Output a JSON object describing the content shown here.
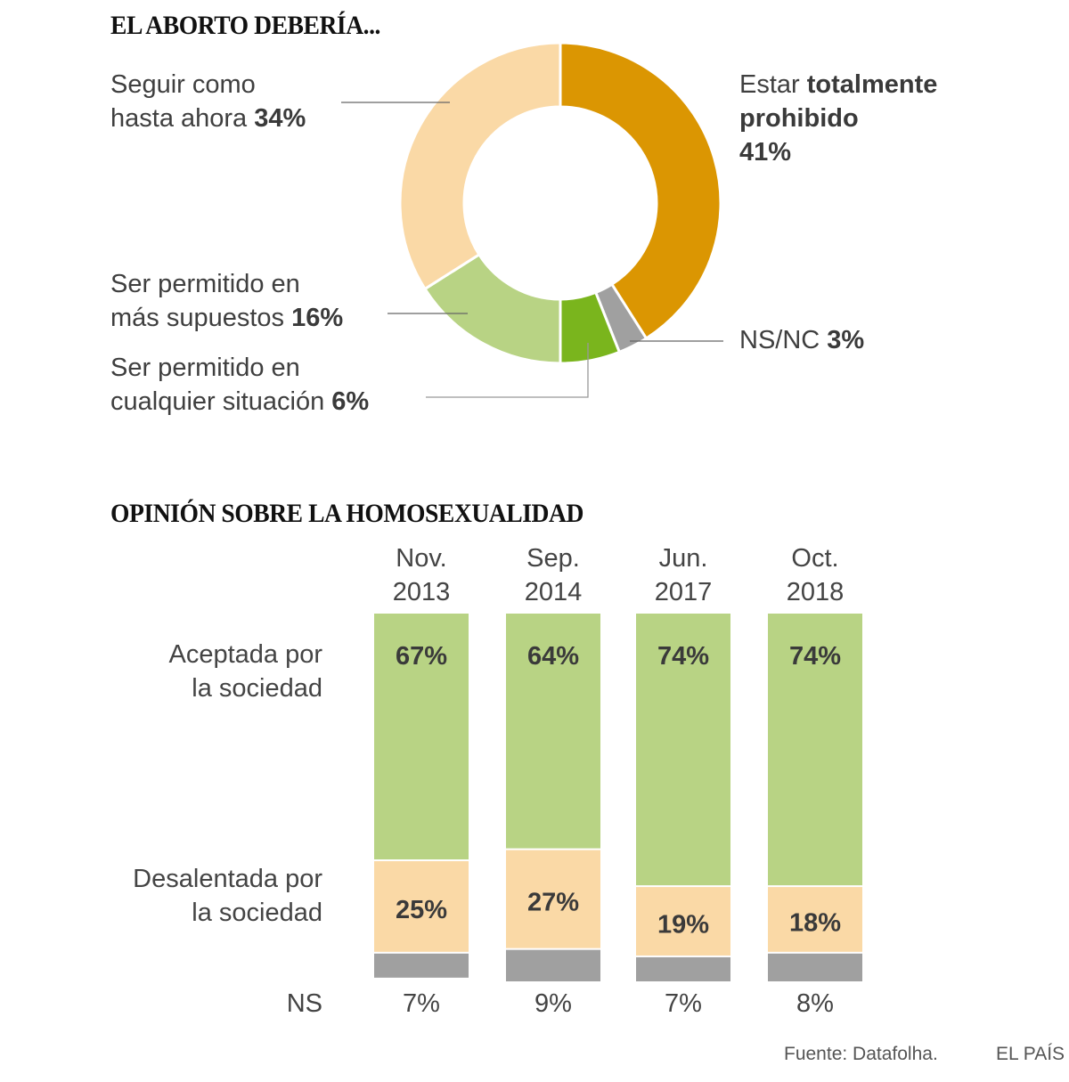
{
  "chart_data": [
    {
      "type": "pie",
      "variant": "donut",
      "title": "EL ABORTO DEBERÍA...",
      "slices": [
        {
          "label_plain": "Estar ",
          "label_bold": "totalmente prohibido",
          "value": 41,
          "value_text": "41%",
          "color": "#db9602"
        },
        {
          "label_plain": "NS/NC ",
          "label_bold": "",
          "value": 3,
          "value_text": "3%",
          "color": "#a0a0a0"
        },
        {
          "label_plain": "Ser permitido en cualquier situación ",
          "label_bold": "",
          "value": 6,
          "value_text": "6%",
          "color": "#7ab51d"
        },
        {
          "label_plain": "Ser permitido en más supuestos ",
          "label_bold": "",
          "value": 16,
          "value_text": "16%",
          "color": "#b8d384"
        },
        {
          "label_plain": "Seguir como hasta ahora ",
          "label_bold": "",
          "value": 34,
          "value_text": "34%",
          "color": "#fad9a6"
        }
      ],
      "start_angle": "12 o'clock",
      "direction": "clockwise"
    },
    {
      "type": "bar",
      "stacked": true,
      "title": "OPINIÓN SOBRE LA HOMOSEXUALIDAD",
      "categories": [
        {
          "line1": "Nov.",
          "line2": "2013"
        },
        {
          "line1": "Sep.",
          "line2": "2014"
        },
        {
          "line1": "Jun.",
          "line2": "2017"
        },
        {
          "line1": "Oct.",
          "line2": "2018"
        }
      ],
      "series": [
        {
          "name_line1": "Aceptada por",
          "name_line2": "la sociedad",
          "values": [
            67,
            64,
            74,
            74
          ],
          "labels": [
            "67%",
            "64%",
            "74%",
            "74%"
          ],
          "color": "#b8d384"
        },
        {
          "name_line1": "Desalentada por",
          "name_line2": "la sociedad",
          "values": [
            25,
            27,
            19,
            18
          ],
          "labels": [
            "25%",
            "27%",
            "19%",
            "18%"
          ],
          "color": "#fad9a6"
        },
        {
          "name_line1": "NS",
          "name_line2": "",
          "values": [
            7,
            9,
            7,
            8
          ],
          "labels": [
            "7%",
            "9%",
            "7%",
            "8%"
          ],
          "color": "#a0a0a0"
        }
      ],
      "xlabel": "",
      "ylabel": "",
      "ylim": [
        0,
        100
      ]
    }
  ],
  "donut_labels": {
    "prohibido": {
      "plain": "Estar ",
      "bold1": "totalmente",
      "bold2": "prohibido",
      "pct": "41%"
    },
    "nsnc": {
      "plain": "NS/NC ",
      "pct": "3%"
    },
    "cualquier": {
      "line1": "Ser permitido en",
      "line2_plain": "cualquier situación ",
      "pct": "6%"
    },
    "supuestos": {
      "line1": "Ser permitido en",
      "line2_plain": "más supuestos ",
      "pct": "16%"
    },
    "seguir": {
      "line1": "Seguir como",
      "line2_plain": "hasta ahora ",
      "pct": "34%"
    }
  },
  "footer": {
    "source": "Fuente: Datafolha.",
    "brand": "EL PAÍS"
  }
}
